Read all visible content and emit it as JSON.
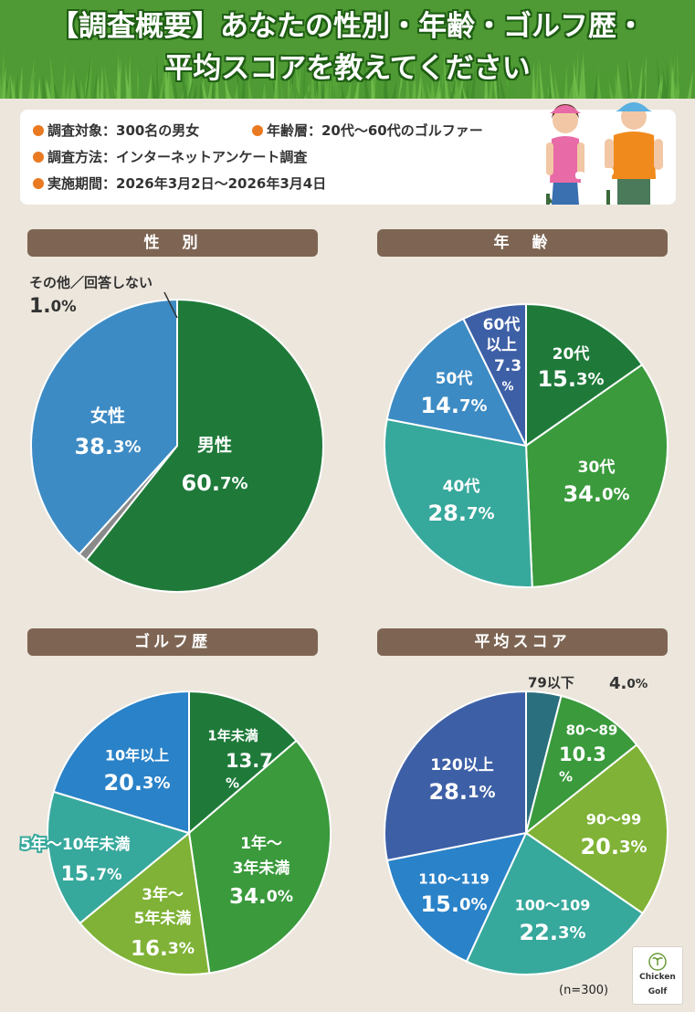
{
  "title_line1": "【調査概要】あなたの性別・年齢・ゴルフ歴・",
  "title_line2": "平均スコアを教えてください",
  "survey": {
    "target": "調査対象：300名の男女",
    "age_range": "年齢層：20代〜60代のゴルファー",
    "method": "調査方法：インターネットアンケート調査",
    "period": "実施期間：2026年3月2日〜2026年3月4日"
  },
  "colors": {
    "header_green": "#4f9a34",
    "section_brown": "#7e6553",
    "bullet_orange": "#ea7a21",
    "background": "#ece6dc"
  },
  "icons": [
    "female-golfer-icon",
    "male-golfer-icon",
    "chicken-golf-logo-icon"
  ],
  "footnote": "(n=300)",
  "logo": {
    "line1": "Chicken",
    "line2": "Golf"
  },
  "chart_data": [
    {
      "type": "pie",
      "title": "性　別",
      "slices": [
        {
          "label": "男性",
          "value": 60.7,
          "color": "#1f7a3a"
        },
        {
          "label": "その他／回答しない",
          "value": 1.0,
          "color": "#8a8a8a"
        },
        {
          "label": "女性",
          "value": 38.3,
          "color": "#3d8bc4"
        }
      ]
    },
    {
      "type": "pie",
      "title": "年　齢",
      "slices": [
        {
          "label": "20代",
          "value": 15.3,
          "color": "#1f7a3a"
        },
        {
          "label": "30代",
          "value": 34.0,
          "color": "#3a9a3c"
        },
        {
          "label": "40代",
          "value": 28.7,
          "color": "#37a89c"
        },
        {
          "label": "50代",
          "value": 14.7,
          "color": "#3d8bc4"
        },
        {
          "label": "60代以上",
          "value": 7.3,
          "color": "#3d5fa6"
        }
      ]
    },
    {
      "type": "pie",
      "title": "ゴルフ歴",
      "slices": [
        {
          "label": "1年未満",
          "value": 13.7,
          "color": "#1f7a3a"
        },
        {
          "label": "1年〜3年未満",
          "value": 34.0,
          "color": "#3a9a3c"
        },
        {
          "label": "3年〜5年未満",
          "value": 16.3,
          "color": "#7fb236"
        },
        {
          "label": "5年〜10年未満",
          "value": 15.7,
          "color": "#37a89c"
        },
        {
          "label": "10年以上",
          "value": 20.3,
          "color": "#2a82c8"
        }
      ]
    },
    {
      "type": "pie",
      "title": "平均スコア",
      "slices": [
        {
          "label": "79以下",
          "value": 4.0,
          "color": "#2a6f7d"
        },
        {
          "label": "80〜89",
          "value": 10.3,
          "color": "#3a9a3c"
        },
        {
          "label": "90〜99",
          "value": 20.3,
          "color": "#7fb236"
        },
        {
          "label": "100〜109",
          "value": 22.3,
          "color": "#37a89c"
        },
        {
          "label": "110〜119",
          "value": 15.0,
          "color": "#2a82c8"
        },
        {
          "label": "120以上",
          "value": 28.1,
          "color": "#3d5fa6"
        }
      ]
    }
  ]
}
